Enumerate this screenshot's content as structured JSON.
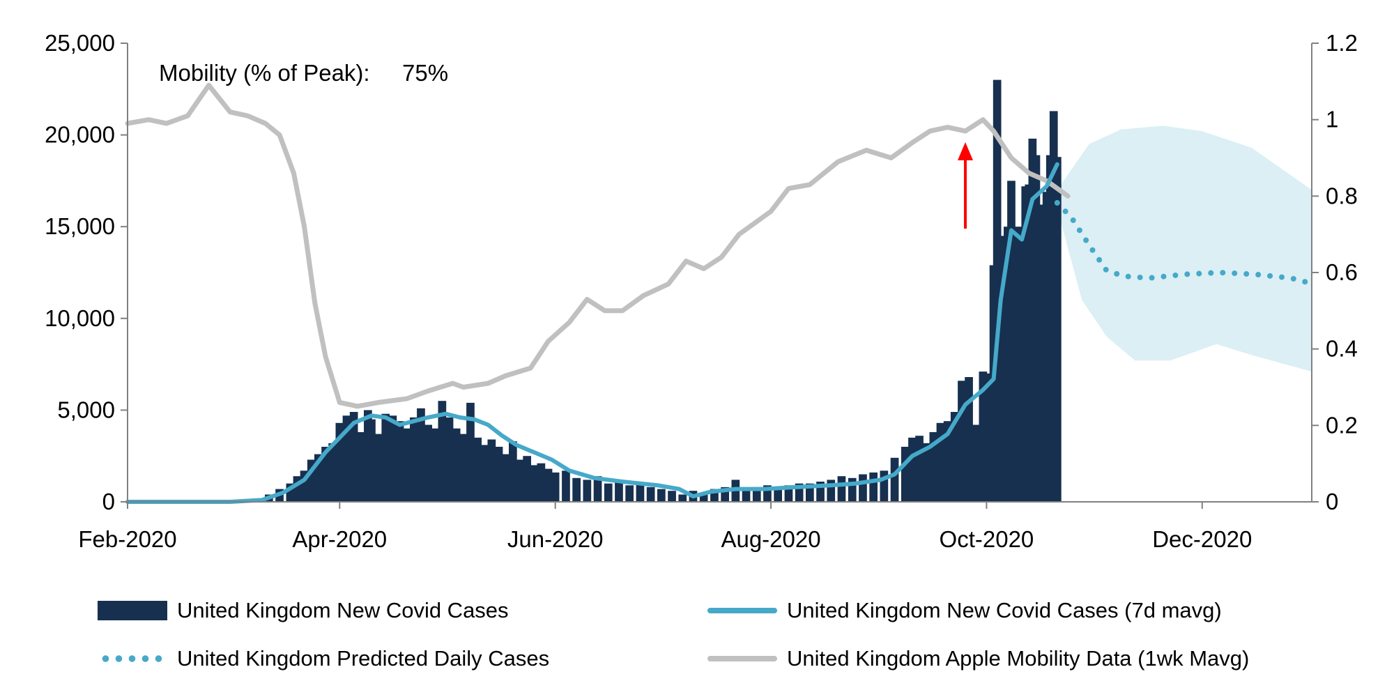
{
  "chart_data": {
    "type": "bar+line",
    "annotation": {
      "label": "Mobility (% of Peak):",
      "value": "75%",
      "arrow_color": "#ff0000",
      "arrow_date": "2020-09-25"
    },
    "x_axis": {
      "type": "date",
      "range": [
        "2020-02-01",
        "2021-01-01"
      ],
      "ticks": [
        {
          "date": "2020-02-01",
          "label": "Feb-2020"
        },
        {
          "date": "2020-04-01",
          "label": "Apr-2020"
        },
        {
          "date": "2020-06-01",
          "label": "Jun-2020"
        },
        {
          "date": "2020-08-01",
          "label": "Aug-2020"
        },
        {
          "date": "2020-10-01",
          "label": "Oct-2020"
        },
        {
          "date": "2020-12-01",
          "label": "Dec-2020"
        }
      ]
    },
    "y_axis_left": {
      "range": [
        0,
        25000
      ],
      "ticks": [
        0,
        5000,
        10000,
        15000,
        20000,
        25000
      ],
      "tick_labels": [
        "0",
        "5,000",
        "10,000",
        "15,000",
        "20,000",
        "25,000"
      ]
    },
    "y_axis_right": {
      "range": [
        0,
        1.2
      ],
      "ticks": [
        0,
        0.2,
        0.4,
        0.6,
        0.8,
        1,
        1.2
      ],
      "tick_labels": [
        "0",
        "0.2",
        "0.4",
        "0.6",
        "0.8",
        "1",
        "1.2"
      ]
    },
    "grid": false,
    "legend_position": "bottom",
    "series": [
      {
        "name": "United Kingdom New Covid Cases",
        "kind": "bar",
        "axis": "left",
        "color": "#17304f",
        "points": [
          [
            "2020-03-01",
            40
          ],
          [
            "2020-03-08",
            120
          ],
          [
            "2020-03-12",
            400
          ],
          [
            "2020-03-15",
            700
          ],
          [
            "2020-03-18",
            1000
          ],
          [
            "2020-03-20",
            1400
          ],
          [
            "2020-03-22",
            1700
          ],
          [
            "2020-03-24",
            2300
          ],
          [
            "2020-03-26",
            2600
          ],
          [
            "2020-03-28",
            3000
          ],
          [
            "2020-03-30",
            3200
          ],
          [
            "2020-04-01",
            4300
          ],
          [
            "2020-04-03",
            4700
          ],
          [
            "2020-04-05",
            4900
          ],
          [
            "2020-04-07",
            3800
          ],
          [
            "2020-04-09",
            5000
          ],
          [
            "2020-04-10",
            4500
          ],
          [
            "2020-04-12",
            3700
          ],
          [
            "2020-04-14",
            4800
          ],
          [
            "2020-04-16",
            4700
          ],
          [
            "2020-04-18",
            4400
          ],
          [
            "2020-04-20",
            4000
          ],
          [
            "2020-04-22",
            4600
          ],
          [
            "2020-04-24",
            5100
          ],
          [
            "2020-04-26",
            4200
          ],
          [
            "2020-04-28",
            4000
          ],
          [
            "2020-04-30",
            5500
          ],
          [
            "2020-05-02",
            4600
          ],
          [
            "2020-05-04",
            4000
          ],
          [
            "2020-05-06",
            3700
          ],
          [
            "2020-05-08",
            5400
          ],
          [
            "2020-05-10",
            3500
          ],
          [
            "2020-05-12",
            3100
          ],
          [
            "2020-05-14",
            3400
          ],
          [
            "2020-05-16",
            3000
          ],
          [
            "2020-05-18",
            2600
          ],
          [
            "2020-05-20",
            3300
          ],
          [
            "2020-05-22",
            2300
          ],
          [
            "2020-05-24",
            2500
          ],
          [
            "2020-05-26",
            2000
          ],
          [
            "2020-05-28",
            2100
          ],
          [
            "2020-05-30",
            1800
          ],
          [
            "2020-06-01",
            1600
          ],
          [
            "2020-06-04",
            1700
          ],
          [
            "2020-06-07",
            1300
          ],
          [
            "2020-06-10",
            1200
          ],
          [
            "2020-06-13",
            1400
          ],
          [
            "2020-06-16",
            1000
          ],
          [
            "2020-06-19",
            1100
          ],
          [
            "2020-06-22",
            900
          ],
          [
            "2020-06-25",
            1000
          ],
          [
            "2020-06-28",
            800
          ],
          [
            "2020-07-01",
            700
          ],
          [
            "2020-07-04",
            600
          ],
          [
            "2020-07-07",
            400
          ],
          [
            "2020-07-10",
            600
          ],
          [
            "2020-07-13",
            500
          ],
          [
            "2020-07-16",
            700
          ],
          [
            "2020-07-19",
            800
          ],
          [
            "2020-07-22",
            1200
          ],
          [
            "2020-07-25",
            700
          ],
          [
            "2020-07-28",
            800
          ],
          [
            "2020-07-31",
            900
          ],
          [
            "2020-08-03",
            800
          ],
          [
            "2020-08-06",
            900
          ],
          [
            "2020-08-09",
            1000
          ],
          [
            "2020-08-12",
            1000
          ],
          [
            "2020-08-15",
            1100
          ],
          [
            "2020-08-18",
            1200
          ],
          [
            "2020-08-21",
            1400
          ],
          [
            "2020-08-24",
            1300
          ],
          [
            "2020-08-27",
            1500
          ],
          [
            "2020-08-30",
            1600
          ],
          [
            "2020-09-02",
            1700
          ],
          [
            "2020-09-05",
            2400
          ],
          [
            "2020-09-08",
            3000
          ],
          [
            "2020-09-10",
            3500
          ],
          [
            "2020-09-12",
            3600
          ],
          [
            "2020-09-14",
            3200
          ],
          [
            "2020-09-16",
            3800
          ],
          [
            "2020-09-18",
            4300
          ],
          [
            "2020-09-20",
            4400
          ],
          [
            "2020-09-22",
            4900
          ],
          [
            "2020-09-24",
            6600
          ],
          [
            "2020-09-26",
            6800
          ],
          [
            "2020-09-28",
            4200
          ],
          [
            "2020-09-30",
            7100
          ],
          [
            "2020-10-02",
            7000
          ],
          [
            "2020-10-03",
            12900
          ],
          [
            "2020-10-04",
            23000
          ],
          [
            "2020-10-05",
            12600
          ],
          [
            "2020-10-06",
            14500
          ],
          [
            "2020-10-07",
            15000
          ],
          [
            "2020-10-08",
            17500
          ],
          [
            "2020-10-09",
            13900
          ],
          [
            "2020-10-10",
            15000
          ],
          [
            "2020-10-11",
            13000
          ],
          [
            "2020-10-12",
            17200
          ],
          [
            "2020-10-13",
            17300
          ],
          [
            "2020-10-14",
            19800
          ],
          [
            "2020-10-15",
            18900
          ],
          [
            "2020-10-16",
            16000
          ],
          [
            "2020-10-17",
            16200
          ],
          [
            "2020-10-18",
            16900
          ],
          [
            "2020-10-19",
            18900
          ],
          [
            "2020-10-20",
            21300
          ],
          [
            "2020-10-21",
            18800
          ]
        ]
      },
      {
        "name": "United Kingdom New Covid Cases (7d mavg)",
        "kind": "line",
        "axis": "left",
        "color": "#46a9c9",
        "points": [
          [
            "2020-02-01",
            0
          ],
          [
            "2020-03-01",
            0
          ],
          [
            "2020-03-10",
            100
          ],
          [
            "2020-03-16",
            500
          ],
          [
            "2020-03-22",
            1200
          ],
          [
            "2020-03-28",
            2700
          ],
          [
            "2020-04-01",
            3500
          ],
          [
            "2020-04-05",
            4300
          ],
          [
            "2020-04-10",
            4700
          ],
          [
            "2020-04-14",
            4600
          ],
          [
            "2020-04-18",
            4200
          ],
          [
            "2020-04-22",
            4400
          ],
          [
            "2020-04-26",
            4600
          ],
          [
            "2020-05-01",
            4800
          ],
          [
            "2020-05-05",
            4600
          ],
          [
            "2020-05-09",
            4500
          ],
          [
            "2020-05-13",
            4200
          ],
          [
            "2020-05-17",
            3600
          ],
          [
            "2020-05-21",
            3100
          ],
          [
            "2020-05-26",
            2700
          ],
          [
            "2020-05-31",
            2300
          ],
          [
            "2020-06-05",
            1700
          ],
          [
            "2020-06-12",
            1300
          ],
          [
            "2020-06-20",
            1100
          ],
          [
            "2020-06-30",
            900
          ],
          [
            "2020-07-06",
            700
          ],
          [
            "2020-07-10",
            300
          ],
          [
            "2020-07-15",
            550
          ],
          [
            "2020-07-22",
            700
          ],
          [
            "2020-07-30",
            700
          ],
          [
            "2020-08-08",
            800
          ],
          [
            "2020-08-18",
            900
          ],
          [
            "2020-08-25",
            1000
          ],
          [
            "2020-09-01",
            1200
          ],
          [
            "2020-09-05",
            1500
          ],
          [
            "2020-09-10",
            2500
          ],
          [
            "2020-09-15",
            3000
          ],
          [
            "2020-09-20",
            3700
          ],
          [
            "2020-09-25",
            5300
          ],
          [
            "2020-09-30",
            6100
          ],
          [
            "2020-10-03",
            6700
          ],
          [
            "2020-10-05",
            11000
          ],
          [
            "2020-10-08",
            14800
          ],
          [
            "2020-10-11",
            14300
          ],
          [
            "2020-10-14",
            16500
          ],
          [
            "2020-10-18",
            17200
          ],
          [
            "2020-10-21",
            18400
          ]
        ]
      },
      {
        "name": "United Kingdom Apple Mobility Data (1wk Mavg)",
        "kind": "line",
        "axis": "right",
        "color": "#c0c0c0",
        "points": [
          [
            "2020-02-01",
            0.99
          ],
          [
            "2020-02-07",
            1.0
          ],
          [
            "2020-02-12",
            0.99
          ],
          [
            "2020-02-18",
            1.01
          ],
          [
            "2020-02-24",
            1.09
          ],
          [
            "2020-03-01",
            1.02
          ],
          [
            "2020-03-06",
            1.01
          ],
          [
            "2020-03-11",
            0.99
          ],
          [
            "2020-03-15",
            0.96
          ],
          [
            "2020-03-19",
            0.86
          ],
          [
            "2020-03-22",
            0.72
          ],
          [
            "2020-03-25",
            0.52
          ],
          [
            "2020-03-28",
            0.38
          ],
          [
            "2020-04-01",
            0.26
          ],
          [
            "2020-04-06",
            0.25
          ],
          [
            "2020-04-12",
            0.26
          ],
          [
            "2020-04-20",
            0.27
          ],
          [
            "2020-04-26",
            0.29
          ],
          [
            "2020-05-03",
            0.31
          ],
          [
            "2020-05-06",
            0.3
          ],
          [
            "2020-05-13",
            0.31
          ],
          [
            "2020-05-18",
            0.33
          ],
          [
            "2020-05-25",
            0.35
          ],
          [
            "2020-05-30",
            0.42
          ],
          [
            "2020-06-05",
            0.47
          ],
          [
            "2020-06-10",
            0.53
          ],
          [
            "2020-06-15",
            0.5
          ],
          [
            "2020-06-20",
            0.5
          ],
          [
            "2020-06-26",
            0.54
          ],
          [
            "2020-07-03",
            0.57
          ],
          [
            "2020-07-08",
            0.63
          ],
          [
            "2020-07-13",
            0.61
          ],
          [
            "2020-07-18",
            0.64
          ],
          [
            "2020-07-23",
            0.7
          ],
          [
            "2020-08-01",
            0.76
          ],
          [
            "2020-08-06",
            0.82
          ],
          [
            "2020-08-12",
            0.83
          ],
          [
            "2020-08-20",
            0.89
          ],
          [
            "2020-08-28",
            0.92
          ],
          [
            "2020-09-04",
            0.9
          ],
          [
            "2020-09-10",
            0.94
          ],
          [
            "2020-09-15",
            0.97
          ],
          [
            "2020-09-20",
            0.98
          ],
          [
            "2020-09-25",
            0.97
          ],
          [
            "2020-09-30",
            1.0
          ],
          [
            "2020-10-03",
            0.97
          ],
          [
            "2020-10-08",
            0.9
          ],
          [
            "2020-10-13",
            0.86
          ],
          [
            "2020-10-18",
            0.84
          ],
          [
            "2020-10-24",
            0.8
          ]
        ]
      },
      {
        "name": "United Kingdom Predicted Daily Cases",
        "kind": "dotted-line",
        "axis": "left",
        "color": "#46a9c9",
        "band_color": "#dbeff5",
        "points": [
          [
            "2020-10-21",
            16300
          ],
          [
            "2020-10-25",
            15500
          ],
          [
            "2020-10-30",
            14000
          ],
          [
            "2020-11-04",
            12600
          ],
          [
            "2020-11-09",
            12300
          ],
          [
            "2020-11-16",
            12200
          ],
          [
            "2020-11-26",
            12400
          ],
          [
            "2020-12-06",
            12500
          ],
          [
            "2020-12-16",
            12400
          ],
          [
            "2020-12-26",
            12200
          ],
          [
            "2021-01-01",
            11900
          ]
        ],
        "band_upper": [
          [
            "2020-10-21",
            17000
          ],
          [
            "2020-10-30",
            19500
          ],
          [
            "2020-11-08",
            20300
          ],
          [
            "2020-11-20",
            20500
          ],
          [
            "2020-12-01",
            20200
          ],
          [
            "2020-12-15",
            19300
          ],
          [
            "2021-01-01",
            17000
          ]
        ],
        "band_lower": [
          [
            "2020-10-21",
            16000
          ],
          [
            "2020-10-28",
            11000
          ],
          [
            "2020-11-04",
            9000
          ],
          [
            "2020-11-12",
            7700
          ],
          [
            "2020-11-22",
            7700
          ],
          [
            "2020-12-05",
            8600
          ],
          [
            "2020-12-15",
            8000
          ],
          [
            "2021-01-01",
            7100
          ]
        ]
      }
    ],
    "legend_items": [
      {
        "label": "United Kingdom New Covid Cases",
        "swatch": "bar",
        "color": "#17304f"
      },
      {
        "label": "United Kingdom New Covid Cases (7d mavg)",
        "swatch": "line",
        "color": "#46a9c9"
      },
      {
        "label": "United Kingdom Predicted Daily Cases",
        "swatch": "dots",
        "color": "#46a9c9"
      },
      {
        "label": "United Kingdom Apple Mobility Data (1wk Mavg)",
        "swatch": "line",
        "color": "#c0c0c0"
      }
    ]
  }
}
